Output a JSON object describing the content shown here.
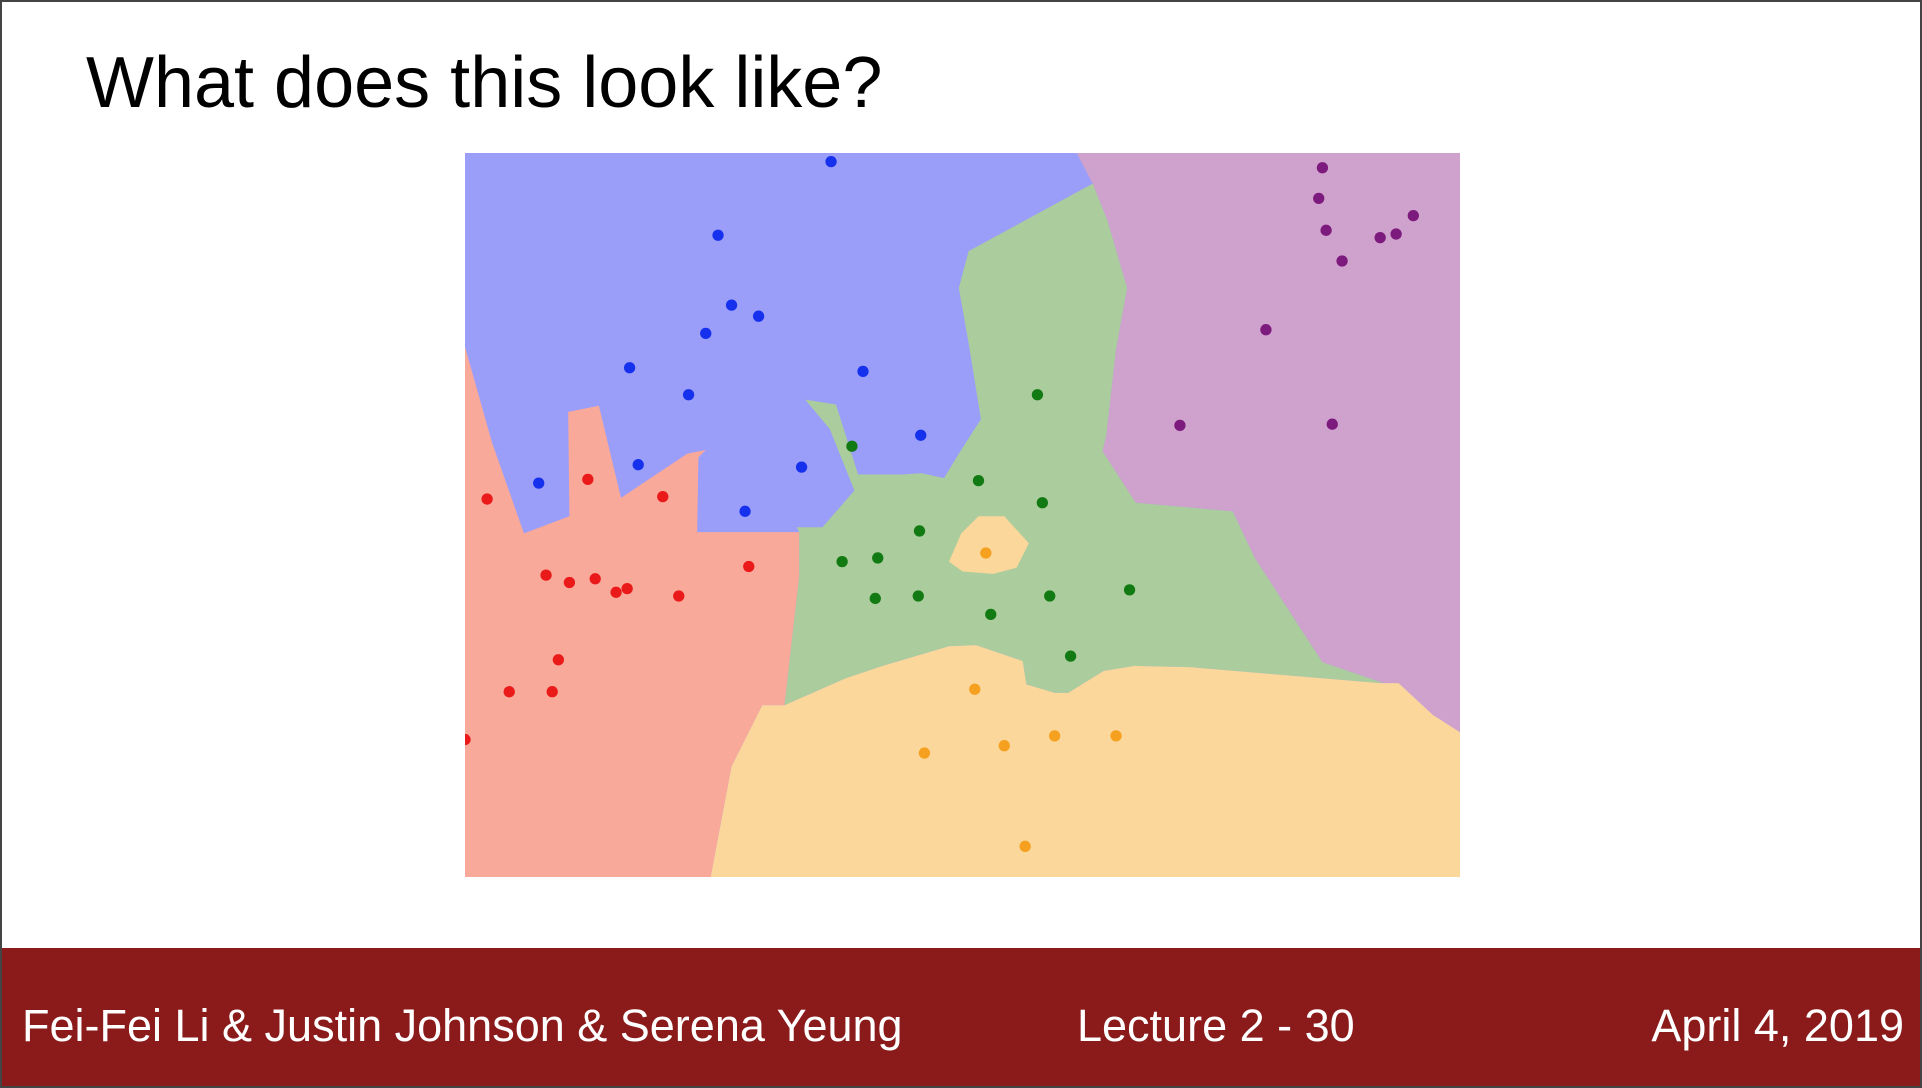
{
  "slide": {
    "title": "What does this look like?",
    "footer": {
      "authors": "Fei-Fei Li & Justin Johnson & Serena Yeung",
      "lecture": "Lecture 2 -   30",
      "date": "April 4, 2019"
    }
  },
  "colors": {
    "footer_bg": "#8b1a1a",
    "region_blue": "#9b9ef8",
    "region_red": "#f9a99a",
    "region_green": "#abcc9c",
    "region_purple": "#cfa1cd",
    "region_orange": "#fbd79b",
    "point_blue": "#1631ee",
    "point_red": "#ea1a1a",
    "point_green": "#127a12",
    "point_purple": "#7d1a7d",
    "point_orange": "#f5a01e"
  },
  "chart_data": {
    "type": "scatter",
    "description_classes": [
      "blue",
      "red",
      "green",
      "purple",
      "orange"
    ],
    "xlim": [
      0,
      810
    ],
    "ylim": [
      0,
      590
    ],
    "series": [
      {
        "class": "blue",
        "points": [
          [
            298,
            7
          ],
          [
            206,
            67
          ],
          [
            217,
            124
          ],
          [
            196,
            147
          ],
          [
            239,
            133
          ],
          [
            134,
            175
          ],
          [
            182,
            197
          ],
          [
            324,
            178
          ],
          [
            371,
            230
          ],
          [
            60,
            269
          ],
          [
            141,
            254
          ],
          [
            274,
            256
          ],
          [
            228,
            292
          ]
        ]
      },
      {
        "class": "red",
        "points": [
          [
            18,
            282
          ],
          [
            100,
            266
          ],
          [
            161,
            280
          ],
          [
            66,
            344
          ],
          [
            85,
            350
          ],
          [
            106,
            347
          ],
          [
            123,
            358
          ],
          [
            132,
            355
          ],
          [
            174,
            361
          ],
          [
            231,
            337
          ],
          [
            76,
            413
          ],
          [
            36,
            439
          ],
          [
            71,
            439
          ],
          [
            0,
            478
          ]
        ]
      },
      {
        "class": "green",
        "points": [
          [
            466,
            197
          ],
          [
            315,
            239
          ],
          [
            418,
            267
          ],
          [
            470,
            285
          ],
          [
            370,
            308
          ],
          [
            307,
            333
          ],
          [
            336,
            330
          ],
          [
            334,
            363
          ],
          [
            369,
            361
          ],
          [
            428,
            376
          ],
          [
            476,
            361
          ],
          [
            541,
            356
          ],
          [
            493,
            410
          ]
        ]
      },
      {
        "class": "purple",
        "points": [
          [
            698,
            12
          ],
          [
            695,
            37
          ],
          [
            701,
            63
          ],
          [
            714,
            88
          ],
          [
            745,
            69
          ],
          [
            758,
            66
          ],
          [
            772,
            51
          ],
          [
            652,
            144
          ],
          [
            582,
            222
          ],
          [
            706,
            221
          ]
        ]
      },
      {
        "class": "orange",
        "points": [
          [
            424,
            326
          ],
          [
            415,
            437
          ],
          [
            374,
            489
          ],
          [
            439,
            483
          ],
          [
            480,
            475
          ],
          [
            530,
            475
          ],
          [
            456,
            565
          ]
        ]
      }
    ]
  }
}
